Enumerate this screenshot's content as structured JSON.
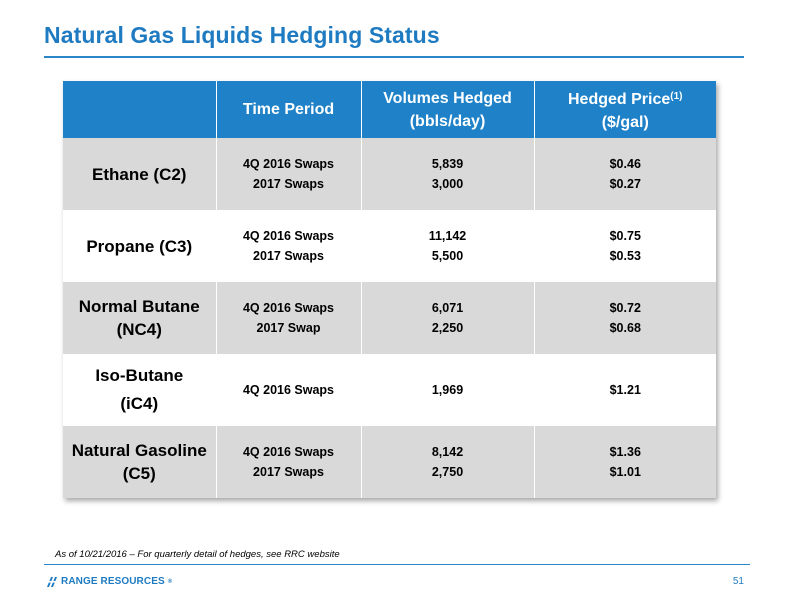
{
  "slide": {
    "title": "Natural Gas Liquids Hedging Status",
    "footnote": "As of 10/21/2016 – For quarterly detail of hedges, see RRC website",
    "page_number": "51",
    "logo_text": "RANGE RESOURCES",
    "logo_mark": "®",
    "brand_color": "#1f7bc1"
  },
  "table": {
    "headers": {
      "product": "",
      "time_period": "Time Period",
      "volumes_line1": "Volumes Hedged",
      "volumes_line2": "(bbls/day)",
      "price_line1": "Hedged Price",
      "price_footnote": "(1)",
      "price_line2": "($/gal)"
    },
    "rows": [
      {
        "product_line1": "Ethane (C2)",
        "product_line2": "",
        "periods": [
          "4Q 2016 Swaps",
          "2017 Swaps"
        ],
        "volumes": [
          "5,839",
          "3,000"
        ],
        "prices": [
          "$0.46",
          "$0.27"
        ]
      },
      {
        "product_line1": "Propane (C3)",
        "product_line2": "",
        "periods": [
          "4Q 2016 Swaps",
          "2017 Swaps"
        ],
        "volumes": [
          "11,142",
          "5,500"
        ],
        "prices": [
          "$0.75",
          "$0.53"
        ]
      },
      {
        "product_line1": "Normal Butane",
        "product_line2": "(NC4)",
        "periods": [
          "4Q 2016 Swaps",
          "2017 Swap"
        ],
        "volumes": [
          "6,071",
          "2,250"
        ],
        "prices": [
          "$0.72",
          "$0.68"
        ]
      },
      {
        "product_line1": "Iso-Butane",
        "product_line2": "(iC4)",
        "periods": [
          "4Q 2016 Swaps"
        ],
        "volumes": [
          "1,969"
        ],
        "prices": [
          "$1.21"
        ]
      },
      {
        "product_line1": "Natural Gasoline",
        "product_line2": "(C5)",
        "periods": [
          "4Q 2016 Swaps",
          "2017 Swaps"
        ],
        "volumes": [
          "8,142",
          "2,750"
        ],
        "prices": [
          "$1.36",
          "$1.01"
        ]
      }
    ],
    "header_color": "#1f82c8",
    "shade_color": "#d9d9d9"
  }
}
